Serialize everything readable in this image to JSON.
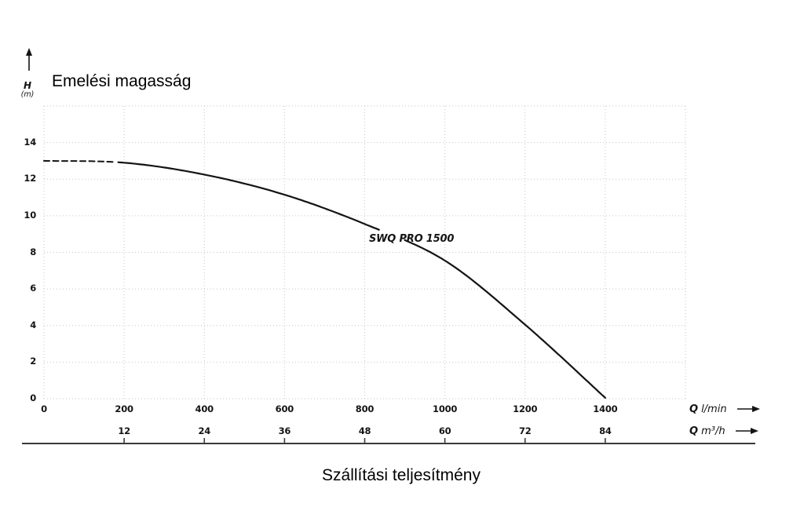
{
  "chart_data": {
    "type": "line",
    "title": "Emelési magasság",
    "xlabel_bottom": "Szállítási teljesítmény",
    "grid": true,
    "legend": "none",
    "y_axis": {
      "symbol": "H",
      "unit": "(m)",
      "min": 0,
      "max": 16,
      "tick_step": 2,
      "ticks": [
        14,
        12,
        10,
        8,
        6,
        4,
        2,
        0
      ]
    },
    "x_axis_lmin": {
      "quantity": "Q",
      "unit": "l/min",
      "min": 0,
      "max": 1600,
      "tick_step": 200,
      "ticks": [
        0,
        200,
        400,
        600,
        800,
        1000,
        1200,
        1400
      ]
    },
    "x_axis_m3h": {
      "quantity": "Q",
      "unit": "m³/h",
      "ticks": [
        {
          "q": 200,
          "label": "12"
        },
        {
          "q": 400,
          "label": "24"
        },
        {
          "q": 600,
          "label": "36"
        },
        {
          "q": 800,
          "label": "48"
        },
        {
          "q": 1000,
          "label": "60"
        },
        {
          "q": 1200,
          "label": "72"
        },
        {
          "q": 1400,
          "label": "84"
        }
      ]
    },
    "series": [
      {
        "name": "SWQ PRO 1500",
        "dashed_until_q": 185,
        "label_gap_q": [
          842,
          898
        ],
        "points": [
          [
            0,
            13.0
          ],
          [
            200,
            12.9
          ],
          [
            400,
            12.25
          ],
          [
            600,
            11.15
          ],
          [
            800,
            9.55
          ],
          [
            1000,
            7.55
          ],
          [
            1200,
            4.05
          ],
          [
            1400,
            0.05
          ]
        ]
      }
    ],
    "colors": {
      "curve": "#141414",
      "grid": "#c6c6c6",
      "axis_line": "#3a3a3a",
      "text": "#141414"
    }
  }
}
